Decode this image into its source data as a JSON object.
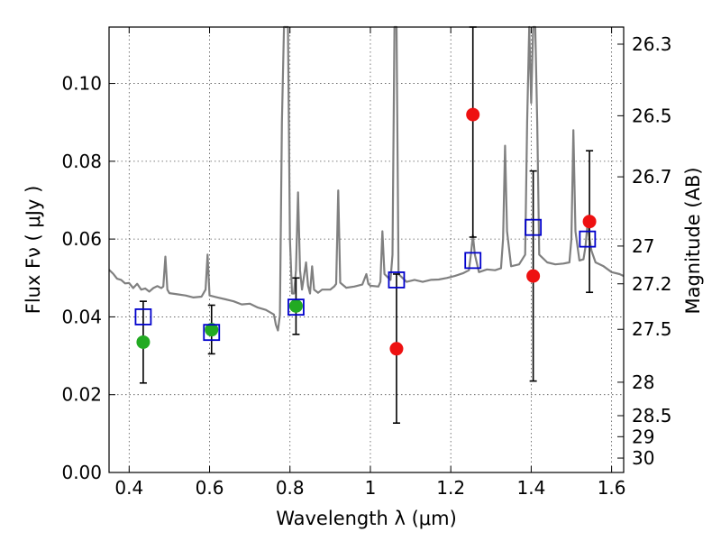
{
  "chart_data": {
    "type": "scatter",
    "title": "",
    "xlabel": "Wavelength  λ (μm)",
    "ylabel": "Flux  Fν  ( μJy )",
    "ylabel_right": "Magnitude (AB)",
    "xlim": [
      0.35,
      1.63
    ],
    "ylim": [
      0.0,
      0.1145
    ],
    "xticks": [
      0.4,
      0.6,
      0.8,
      1.0,
      1.2,
      1.4,
      1.6
    ],
    "xtick_labels": [
      "0.4",
      "0.6",
      "0.8",
      "1",
      "1.2",
      "1.4",
      "1.6"
    ],
    "yticks": [
      0.0,
      0.02,
      0.04,
      0.06,
      0.08,
      0.1
    ],
    "ytick_labels": [
      "0.00",
      "0.02",
      "0.04",
      "0.06",
      "0.08",
      "0.10"
    ],
    "right_ticks": [
      {
        "flux": 0.1101,
        "label": "26.3"
      },
      {
        "flux": 0.0917,
        "label": "26.5"
      },
      {
        "flux": 0.076,
        "label": "26.7"
      },
      {
        "flux": 0.0582,
        "label": "27"
      },
      {
        "flux": 0.0485,
        "label": "27.2"
      },
      {
        "flux": 0.0368,
        "label": "27.5"
      },
      {
        "flux": 0.0232,
        "label": "28"
      },
      {
        "flux": 0.0146,
        "label": "28.5"
      },
      {
        "flux": 0.0092,
        "label": "29"
      },
      {
        "flux": 0.0037,
        "label": "30"
      }
    ],
    "grid": true,
    "colors": {
      "spectrum": "#808080",
      "model": "#0000cc",
      "detected": "#22aa22",
      "candidate": "#ee1111",
      "errorbar": "#000000"
    },
    "spectrum": [
      [
        0.35,
        0.0521
      ],
      [
        0.36,
        0.0511
      ],
      [
        0.37,
        0.0498
      ],
      [
        0.38,
        0.0495
      ],
      [
        0.39,
        0.0486
      ],
      [
        0.4,
        0.0487
      ],
      [
        0.41,
        0.0474
      ],
      [
        0.42,
        0.0485
      ],
      [
        0.43,
        0.047
      ],
      [
        0.44,
        0.0473
      ],
      [
        0.45,
        0.0465
      ],
      [
        0.46,
        0.0474
      ],
      [
        0.47,
        0.0479
      ],
      [
        0.48,
        0.0474
      ],
      [
        0.485,
        0.0478
      ],
      [
        0.49,
        0.0555
      ],
      [
        0.495,
        0.047
      ],
      [
        0.5,
        0.0461
      ],
      [
        0.52,
        0.0458
      ],
      [
        0.54,
        0.0455
      ],
      [
        0.56,
        0.045
      ],
      [
        0.58,
        0.0452
      ],
      [
        0.59,
        0.047
      ],
      [
        0.595,
        0.056
      ],
      [
        0.6,
        0.0455
      ],
      [
        0.62,
        0.045
      ],
      [
        0.64,
        0.0445
      ],
      [
        0.66,
        0.044
      ],
      [
        0.68,
        0.0432
      ],
      [
        0.7,
        0.0434
      ],
      [
        0.72,
        0.0424
      ],
      [
        0.74,
        0.0418
      ],
      [
        0.76,
        0.0406
      ],
      [
        0.765,
        0.038
      ],
      [
        0.77,
        0.0365
      ],
      [
        0.775,
        0.0405
      ],
      [
        0.78,
        0.09
      ],
      [
        0.785,
        0.1145
      ],
      [
        0.79,
        0.1145
      ],
      [
        0.795,
        0.1145
      ],
      [
        0.8,
        0.06
      ],
      [
        0.805,
        0.046
      ],
      [
        0.81,
        0.046
      ],
      [
        0.815,
        0.052
      ],
      [
        0.82,
        0.072
      ],
      [
        0.825,
        0.052
      ],
      [
        0.83,
        0.047
      ],
      [
        0.84,
        0.054
      ],
      [
        0.845,
        0.048
      ],
      [
        0.85,
        0.046
      ],
      [
        0.855,
        0.053
      ],
      [
        0.86,
        0.047
      ],
      [
        0.87,
        0.0462
      ],
      [
        0.88,
        0.047
      ],
      [
        0.9,
        0.047
      ],
      [
        0.91,
        0.0478
      ],
      [
        0.915,
        0.0485
      ],
      [
        0.92,
        0.0725
      ],
      [
        0.925,
        0.0488
      ],
      [
        0.94,
        0.0475
      ],
      [
        0.96,
        0.0478
      ],
      [
        0.98,
        0.0483
      ],
      [
        0.99,
        0.051
      ],
      [
        0.995,
        0.0485
      ],
      [
        1.0,
        0.048
      ],
      [
        1.02,
        0.0478
      ],
      [
        1.025,
        0.049
      ],
      [
        1.03,
        0.062
      ],
      [
        1.035,
        0.051
      ],
      [
        1.05,
        0.0495
      ],
      [
        1.055,
        0.056
      ],
      [
        1.06,
        0.1145
      ],
      [
        1.065,
        0.1145
      ],
      [
        1.07,
        0.051
      ],
      [
        1.09,
        0.049
      ],
      [
        1.11,
        0.0495
      ],
      [
        1.13,
        0.049
      ],
      [
        1.15,
        0.0495
      ],
      [
        1.17,
        0.0496
      ],
      [
        1.19,
        0.05
      ],
      [
        1.21,
        0.0505
      ],
      [
        1.23,
        0.0512
      ],
      [
        1.245,
        0.052
      ],
      [
        1.25,
        0.056
      ],
      [
        1.255,
        0.061
      ],
      [
        1.26,
        0.056
      ],
      [
        1.27,
        0.0515
      ],
      [
        1.29,
        0.0522
      ],
      [
        1.31,
        0.052
      ],
      [
        1.325,
        0.0525
      ],
      [
        1.33,
        0.06
      ],
      [
        1.335,
        0.084
      ],
      [
        1.34,
        0.062
      ],
      [
        1.35,
        0.053
      ],
      [
        1.37,
        0.0535
      ],
      [
        1.385,
        0.056
      ],
      [
        1.39,
        0.09
      ],
      [
        1.395,
        0.1145
      ],
      [
        1.4,
        0.095
      ],
      [
        1.405,
        0.1145
      ],
      [
        1.41,
        0.1145
      ],
      [
        1.415,
        0.09
      ],
      [
        1.42,
        0.056
      ],
      [
        1.44,
        0.054
      ],
      [
        1.46,
        0.0535
      ],
      [
        1.48,
        0.0537
      ],
      [
        1.495,
        0.054
      ],
      [
        1.5,
        0.06
      ],
      [
        1.505,
        0.088
      ],
      [
        1.51,
        0.062
      ],
      [
        1.52,
        0.0545
      ],
      [
        1.53,
        0.0548
      ],
      [
        1.535,
        0.058
      ],
      [
        1.54,
        0.064
      ],
      [
        1.545,
        0.06
      ],
      [
        1.55,
        0.057
      ],
      [
        1.56,
        0.054
      ],
      [
        1.58,
        0.053
      ],
      [
        1.6,
        0.0515
      ],
      [
        1.62,
        0.051
      ],
      [
        1.63,
        0.0505
      ]
    ],
    "model_points": [
      {
        "x": 0.435,
        "y": 0.04
      },
      {
        "x": 0.605,
        "y": 0.036
      },
      {
        "x": 0.815,
        "y": 0.0425
      },
      {
        "x": 1.065,
        "y": 0.0495
      },
      {
        "x": 1.255,
        "y": 0.0545
      },
      {
        "x": 1.405,
        "y": 0.063
      },
      {
        "x": 1.54,
        "y": 0.06
      }
    ],
    "detected_points": [
      {
        "x": 0.435,
        "y": 0.0335,
        "err_low": 0.023,
        "err_high": 0.044
      },
      {
        "x": 0.605,
        "y": 0.0367,
        "err_low": 0.0305,
        "err_high": 0.043
      },
      {
        "x": 0.815,
        "y": 0.0428,
        "err_low": 0.0355,
        "err_high": 0.05
      }
    ],
    "candidate_points": [
      {
        "x": 1.065,
        "y": 0.0318,
        "err_low": 0.0127,
        "err_high": 0.051
      },
      {
        "x": 1.255,
        "y": 0.092,
        "err_low": 0.0605,
        "err_high": 0.1145
      },
      {
        "x": 1.405,
        "y": 0.0505,
        "err_low": 0.0235,
        "err_high": 0.0775
      },
      {
        "x": 1.545,
        "y": 0.0645,
        "err_low": 0.0463,
        "err_high": 0.0827
      }
    ]
  }
}
